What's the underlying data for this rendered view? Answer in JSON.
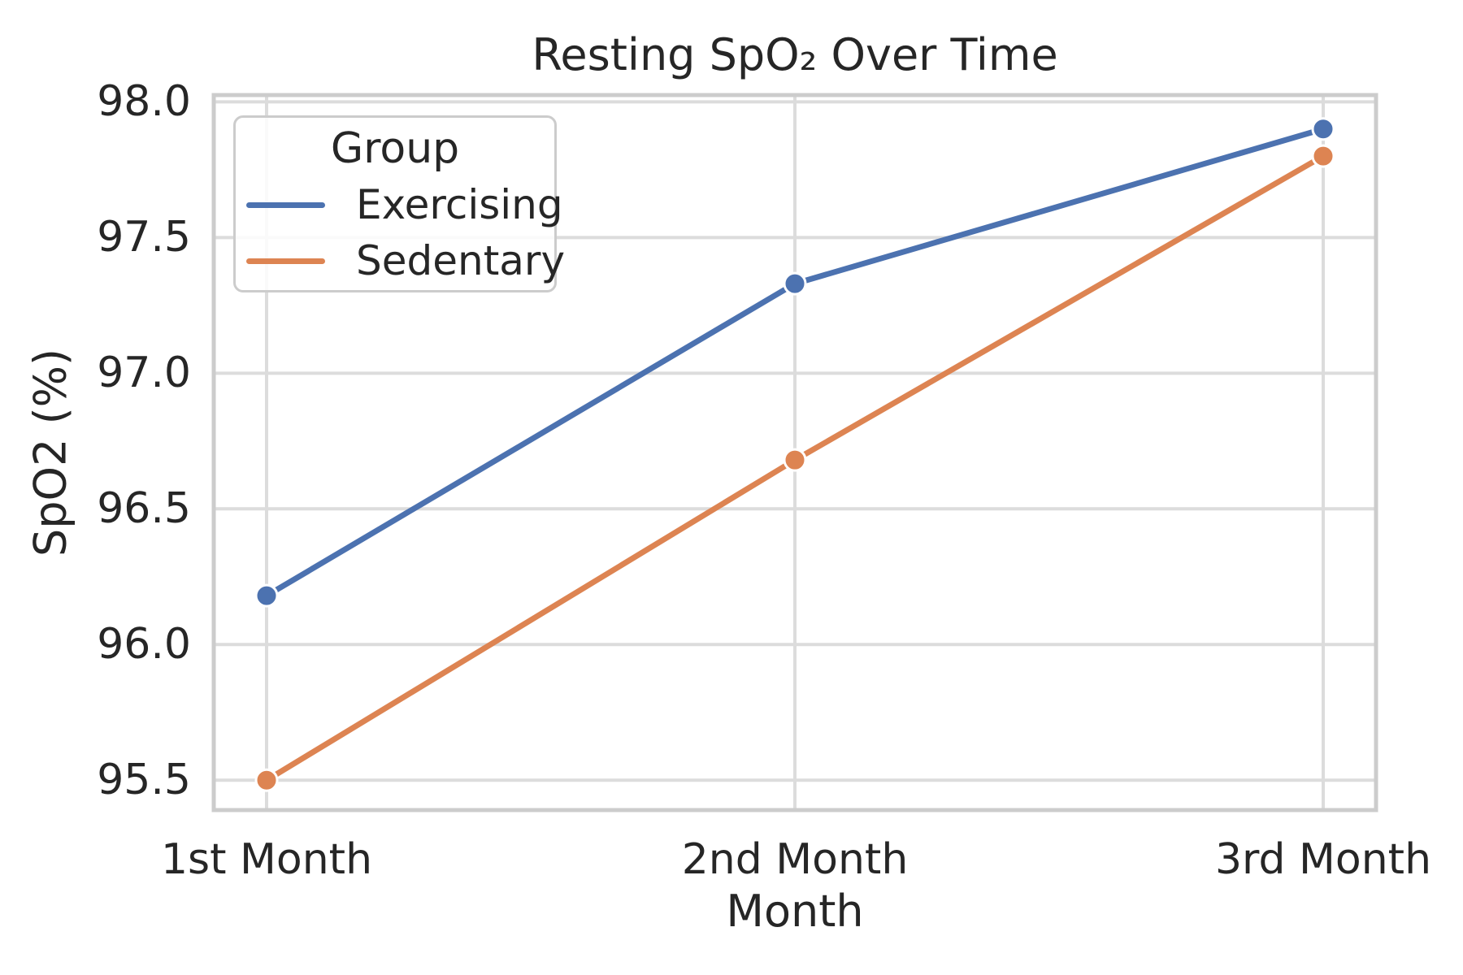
{
  "chart_data": {
    "type": "line",
    "title": "Resting SpO₂ Over Time",
    "xlabel": "Month",
    "ylabel": "SpO2 (%)",
    "legend_title": "Group",
    "legend_position": "upper left",
    "grid": true,
    "categories": [
      "1st Month",
      "2nd Month",
      "3rd Month"
    ],
    "series": [
      {
        "name": "Exercising",
        "color": "#4C72B0",
        "values": [
          96.18,
          97.33,
          97.9
        ]
      },
      {
        "name": "Sedentary",
        "color": "#DD8452",
        "values": [
          95.5,
          96.68,
          97.8
        ]
      }
    ],
    "ylim": [
      95.39,
      98.025
    ],
    "yticks": [
      95.5,
      96.0,
      96.5,
      97.0,
      97.5,
      98.0
    ]
  },
  "colors": {
    "grid": "#dcdcdc",
    "spine": "#cccccc",
    "text": "#262626",
    "marker_edge": "#ffffff"
  }
}
